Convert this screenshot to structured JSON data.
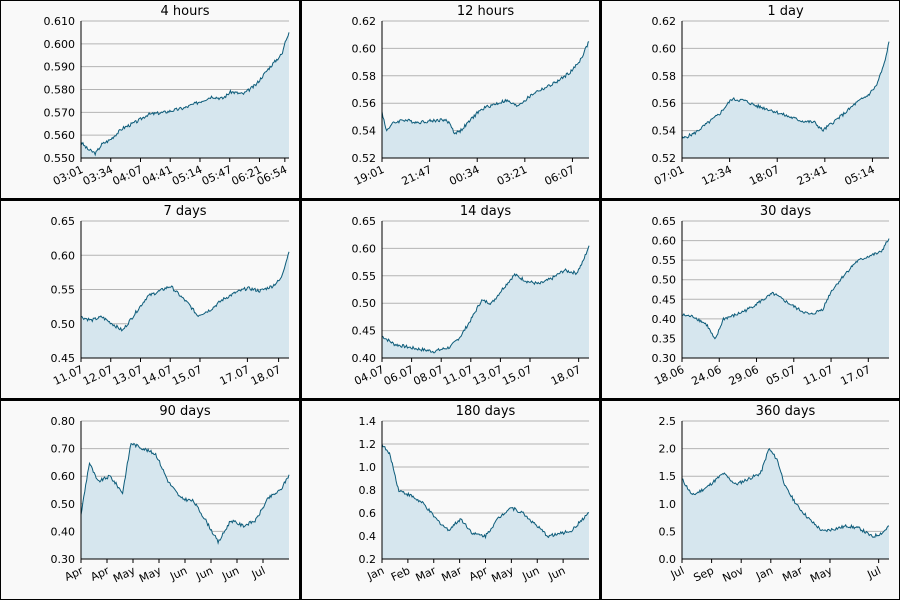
{
  "charts": [
    {
      "title": "4 hours",
      "chart_data": {
        "type": "area",
        "ylim": [
          0.55,
          0.61
        ],
        "yticks": [
          "0.550",
          "0.560",
          "0.570",
          "0.580",
          "0.590",
          "0.600",
          "0.610"
        ],
        "xticks": [
          "03:01",
          "03:34",
          "04:07",
          "04:41",
          "05:14",
          "05:47",
          "06:21",
          "06:54"
        ],
        "x_tick_positions": [
          0,
          0.143,
          0.286,
          0.429,
          0.572,
          0.715,
          0.858,
          0.98
        ],
        "values": [
          [
            0,
            0.557
          ],
          [
            0.03,
            0.554
          ],
          [
            0.07,
            0.552
          ],
          [
            0.1,
            0.556
          ],
          [
            0.14,
            0.558
          ],
          [
            0.2,
            0.563
          ],
          [
            0.27,
            0.566
          ],
          [
            0.32,
            0.569
          ],
          [
            0.4,
            0.57
          ],
          [
            0.5,
            0.572
          ],
          [
            0.58,
            0.575
          ],
          [
            0.63,
            0.577
          ],
          [
            0.68,
            0.576
          ],
          [
            0.72,
            0.579
          ],
          [
            0.78,
            0.578
          ],
          [
            0.84,
            0.582
          ],
          [
            0.9,
            0.589
          ],
          [
            0.94,
            0.593
          ],
          [
            0.97,
            0.596
          ],
          [
            0.98,
            0.601
          ],
          [
            1,
            0.605
          ]
        ],
        "grid": true
      }
    },
    {
      "title": "12 hours",
      "chart_data": {
        "type": "area",
        "ylim": [
          0.52,
          0.62
        ],
        "yticks": [
          "0.52",
          "0.54",
          "0.56",
          "0.58",
          "0.60",
          "0.62"
        ],
        "xticks": [
          "19:01",
          "21:47",
          "00:34",
          "03:21",
          "06:07"
        ],
        "x_tick_positions": [
          0,
          0.23,
          0.46,
          0.69,
          0.92
        ],
        "values": [
          [
            0,
            0.554
          ],
          [
            0.02,
            0.54
          ],
          [
            0.05,
            0.545
          ],
          [
            0.1,
            0.548
          ],
          [
            0.17,
            0.546
          ],
          [
            0.23,
            0.547
          ],
          [
            0.3,
            0.548
          ],
          [
            0.33,
            0.545
          ],
          [
            0.35,
            0.538
          ],
          [
            0.38,
            0.54
          ],
          [
            0.43,
            0.548
          ],
          [
            0.46,
            0.553
          ],
          [
            0.5,
            0.557
          ],
          [
            0.56,
            0.56
          ],
          [
            0.6,
            0.562
          ],
          [
            0.65,
            0.558
          ],
          [
            0.69,
            0.562
          ],
          [
            0.74,
            0.568
          ],
          [
            0.8,
            0.572
          ],
          [
            0.86,
            0.577
          ],
          [
            0.92,
            0.584
          ],
          [
            0.96,
            0.592
          ],
          [
            1,
            0.605
          ]
        ],
        "grid": true
      }
    },
    {
      "title": "1 day",
      "chart_data": {
        "type": "area",
        "ylim": [
          0.52,
          0.62
        ],
        "yticks": [
          "0.52",
          "0.54",
          "0.56",
          "0.58",
          "0.60",
          "0.62"
        ],
        "xticks": [
          "07:01",
          "12:34",
          "18:07",
          "23:41",
          "05:14"
        ],
        "x_tick_positions": [
          0,
          0.23,
          0.46,
          0.69,
          0.92
        ],
        "values": [
          [
            0,
            0.534
          ],
          [
            0.06,
            0.538
          ],
          [
            0.12,
            0.545
          ],
          [
            0.18,
            0.552
          ],
          [
            0.24,
            0.563
          ],
          [
            0.3,
            0.562
          ],
          [
            0.36,
            0.558
          ],
          [
            0.43,
            0.555
          ],
          [
            0.5,
            0.551
          ],
          [
            0.58,
            0.547
          ],
          [
            0.64,
            0.546
          ],
          [
            0.68,
            0.54
          ],
          [
            0.72,
            0.545
          ],
          [
            0.78,
            0.552
          ],
          [
            0.84,
            0.56
          ],
          [
            0.9,
            0.566
          ],
          [
            0.94,
            0.573
          ],
          [
            0.98,
            0.59
          ],
          [
            1,
            0.605
          ]
        ],
        "grid": true
      }
    },
    {
      "title": "7 days",
      "chart_data": {
        "type": "area",
        "ylim": [
          0.45,
          0.65
        ],
        "yticks": [
          "0.45",
          "0.50",
          "0.55",
          "0.60",
          "0.65"
        ],
        "xticks": [
          "11.07",
          "12.07",
          "13.07",
          "14.07",
          "15.07",
          "17.07",
          "18.07"
        ],
        "x_tick_positions": [
          0,
          0.143,
          0.286,
          0.429,
          0.572,
          0.8,
          0.95
        ],
        "values": [
          [
            0,
            0.51
          ],
          [
            0.05,
            0.505
          ],
          [
            0.1,
            0.51
          ],
          [
            0.16,
            0.498
          ],
          [
            0.2,
            0.49
          ],
          [
            0.26,
            0.515
          ],
          [
            0.32,
            0.54
          ],
          [
            0.38,
            0.548
          ],
          [
            0.43,
            0.555
          ],
          [
            0.48,
            0.54
          ],
          [
            0.52,
            0.528
          ],
          [
            0.56,
            0.512
          ],
          [
            0.62,
            0.52
          ],
          [
            0.68,
            0.535
          ],
          [
            0.74,
            0.545
          ],
          [
            0.8,
            0.552
          ],
          [
            0.86,
            0.548
          ],
          [
            0.92,
            0.555
          ],
          [
            0.96,
            0.565
          ],
          [
            1,
            0.605
          ]
        ],
        "grid": true
      }
    },
    {
      "title": "14 days",
      "chart_data": {
        "type": "area",
        "ylim": [
          0.4,
          0.65
        ],
        "yticks": [
          "0.40",
          "0.45",
          "0.50",
          "0.55",
          "0.60",
          "0.65"
        ],
        "xticks": [
          "04.07",
          "06.07",
          "08.07",
          "11.07",
          "13.07",
          "15.07",
          "18.07"
        ],
        "x_tick_positions": [
          0,
          0.143,
          0.286,
          0.429,
          0.572,
          0.715,
          0.95
        ],
        "values": [
          [
            0,
            0.44
          ],
          [
            0.06,
            0.425
          ],
          [
            0.15,
            0.418
          ],
          [
            0.25,
            0.412
          ],
          [
            0.33,
            0.42
          ],
          [
            0.38,
            0.44
          ],
          [
            0.43,
            0.47
          ],
          [
            0.48,
            0.505
          ],
          [
            0.53,
            0.5
          ],
          [
            0.58,
            0.525
          ],
          [
            0.64,
            0.552
          ],
          [
            0.7,
            0.54
          ],
          [
            0.76,
            0.535
          ],
          [
            0.82,
            0.545
          ],
          [
            0.88,
            0.56
          ],
          [
            0.94,
            0.555
          ],
          [
            0.97,
            0.575
          ],
          [
            1,
            0.605
          ]
        ],
        "grid": true
      }
    },
    {
      "title": "30 days",
      "chart_data": {
        "type": "area",
        "ylim": [
          0.3,
          0.65
        ],
        "yticks": [
          "0.30",
          "0.35",
          "0.40",
          "0.45",
          "0.50",
          "0.55",
          "0.60",
          "0.65"
        ],
        "xticks": [
          "18.06",
          "24.06",
          "29.06",
          "05.07",
          "11.07",
          "17.07"
        ],
        "x_tick_positions": [
          0,
          0.18,
          0.36,
          0.54,
          0.72,
          0.9
        ],
        "values": [
          [
            0,
            0.41
          ],
          [
            0.06,
            0.405
          ],
          [
            0.12,
            0.385
          ],
          [
            0.16,
            0.345
          ],
          [
            0.2,
            0.4
          ],
          [
            0.26,
            0.41
          ],
          [
            0.32,
            0.425
          ],
          [
            0.38,
            0.445
          ],
          [
            0.44,
            0.465
          ],
          [
            0.5,
            0.445
          ],
          [
            0.56,
            0.425
          ],
          [
            0.62,
            0.41
          ],
          [
            0.68,
            0.425
          ],
          [
            0.72,
            0.47
          ],
          [
            0.78,
            0.51
          ],
          [
            0.84,
            0.545
          ],
          [
            0.9,
            0.56
          ],
          [
            0.96,
            0.57
          ],
          [
            1,
            0.605
          ]
        ],
        "grid": true
      }
    },
    {
      "title": "90 days",
      "chart_data": {
        "type": "area",
        "ylim": [
          0.3,
          0.8
        ],
        "yticks": [
          "0.30",
          "0.40",
          "0.50",
          "0.60",
          "0.70",
          "0.80"
        ],
        "xticks": [
          "Apr",
          "Apr",
          "May",
          "May",
          "Jun",
          "Jun",
          "Jun",
          "Jul"
        ],
        "x_tick_positions": [
          0,
          0.125,
          0.25,
          0.375,
          0.5,
          0.625,
          0.75,
          0.875
        ],
        "values": [
          [
            0,
            0.46
          ],
          [
            0.04,
            0.65
          ],
          [
            0.08,
            0.58
          ],
          [
            0.14,
            0.6
          ],
          [
            0.2,
            0.54
          ],
          [
            0.24,
            0.72
          ],
          [
            0.3,
            0.7
          ],
          [
            0.36,
            0.68
          ],
          [
            0.42,
            0.58
          ],
          [
            0.48,
            0.52
          ],
          [
            0.54,
            0.51
          ],
          [
            0.6,
            0.44
          ],
          [
            0.66,
            0.36
          ],
          [
            0.72,
            0.44
          ],
          [
            0.78,
            0.42
          ],
          [
            0.84,
            0.44
          ],
          [
            0.9,
            0.52
          ],
          [
            0.96,
            0.55
          ],
          [
            1,
            0.605
          ]
        ],
        "grid": true
      }
    },
    {
      "title": "180 days",
      "chart_data": {
        "type": "area",
        "ylim": [
          0.2,
          1.4
        ],
        "yticks": [
          "0.2",
          "0.4",
          "0.6",
          "0.8",
          "1.0",
          "1.2",
          "1.4"
        ],
        "xticks": [
          "Jan",
          "Feb",
          "Mar",
          "Mar",
          "Apr",
          "May",
          "Jun",
          "Jun"
        ],
        "x_tick_positions": [
          0,
          0.125,
          0.25,
          0.375,
          0.5,
          0.625,
          0.75,
          0.875
        ],
        "values": [
          [
            0,
            1.2
          ],
          [
            0.04,
            1.1
          ],
          [
            0.08,
            0.8
          ],
          [
            0.14,
            0.75
          ],
          [
            0.2,
            0.68
          ],
          [
            0.26,
            0.55
          ],
          [
            0.32,
            0.45
          ],
          [
            0.38,
            0.55
          ],
          [
            0.44,
            0.42
          ],
          [
            0.5,
            0.4
          ],
          [
            0.56,
            0.55
          ],
          [
            0.62,
            0.65
          ],
          [
            0.68,
            0.6
          ],
          [
            0.74,
            0.5
          ],
          [
            0.8,
            0.4
          ],
          [
            0.86,
            0.42
          ],
          [
            0.92,
            0.45
          ],
          [
            0.97,
            0.55
          ],
          [
            1,
            0.6
          ]
        ],
        "grid": true
      }
    },
    {
      "title": "360 days",
      "chart_data": {
        "type": "area",
        "ylim": [
          0.0,
          2.5
        ],
        "yticks": [
          "0.0",
          "0.5",
          "1.0",
          "1.5",
          "2.0",
          "2.5"
        ],
        "xticks": [
          "Jul",
          "Sep",
          "Nov",
          "Jan",
          "Mar",
          "May",
          "Jul"
        ],
        "x_tick_positions": [
          0,
          0.143,
          0.286,
          0.429,
          0.572,
          0.715,
          0.95
        ],
        "values": [
          [
            0,
            1.45
          ],
          [
            0.05,
            1.15
          ],
          [
            0.12,
            1.3
          ],
          [
            0.2,
            1.55
          ],
          [
            0.26,
            1.35
          ],
          [
            0.32,
            1.45
          ],
          [
            0.38,
            1.55
          ],
          [
            0.42,
            2.0
          ],
          [
            0.46,
            1.8
          ],
          [
            0.5,
            1.3
          ],
          [
            0.56,
            0.95
          ],
          [
            0.62,
            0.7
          ],
          [
            0.68,
            0.5
          ],
          [
            0.74,
            0.55
          ],
          [
            0.8,
            0.6
          ],
          [
            0.86,
            0.55
          ],
          [
            0.92,
            0.4
          ],
          [
            0.97,
            0.48
          ],
          [
            1,
            0.6
          ]
        ],
        "grid": true
      }
    }
  ]
}
